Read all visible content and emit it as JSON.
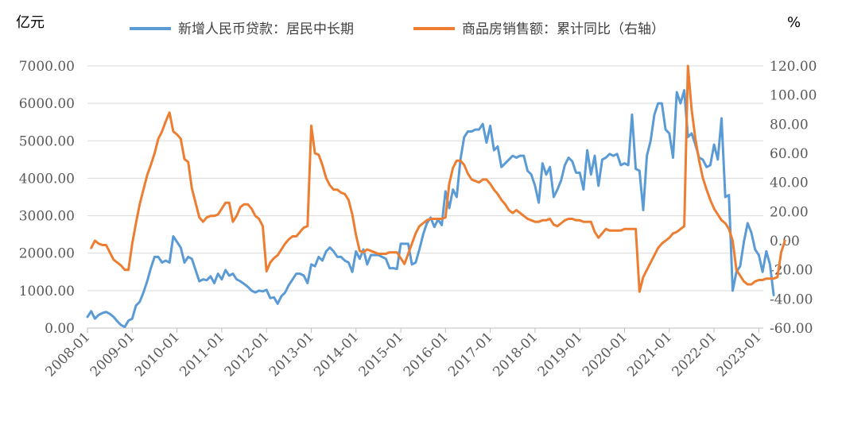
{
  "chart_data": {
    "type": "line",
    "left_axis_unit": "亿元",
    "right_axis_unit": "%",
    "left_ylim": [
      0,
      7000
    ],
    "right_ylim": [
      -60,
      120
    ],
    "left_ticks": [
      "0.00",
      "1000.00",
      "2000.00",
      "3000.00",
      "4000.00",
      "5000.00",
      "6000.00",
      "7000.00"
    ],
    "right_ticks": [
      "-60.00",
      "-40.00",
      "-20.00",
      "0.00",
      "20.00",
      "40.00",
      "60.00",
      "80.00",
      "100.00",
      "120.00"
    ],
    "x_ticks": [
      "2008-01",
      "2009-01",
      "2010-01",
      "2011-01",
      "2012-01",
      "2013-01",
      "2014-01",
      "2015-01",
      "2016-01",
      "2017-01",
      "2018-01",
      "2019-01",
      "2020-01",
      "2021-01",
      "2022-01",
      "2023-01"
    ],
    "gridlines": true,
    "legend_position": "top",
    "series": [
      {
        "name": "新增人民币贷款：居民中长期",
        "axis": "left",
        "color": "#5b9bd5",
        "start": "2008-01",
        "values": [
          300,
          450,
          250,
          350,
          400,
          430,
          380,
          300,
          180,
          80,
          30,
          200,
          250,
          600,
          700,
          950,
          1250,
          1600,
          1900,
          1900,
          1750,
          1800,
          1750,
          2450,
          2300,
          2150,
          1750,
          1900,
          1850,
          1550,
          1250,
          1300,
          1280,
          1380,
          1200,
          1450,
          1300,
          1550,
          1400,
          1450,
          1300,
          1250,
          1180,
          1100,
          1000,
          950,
          1000,
          980,
          1020,
          800,
          820,
          650,
          850,
          950,
          1150,
          1300,
          1450,
          1450,
          1400,
          1200,
          1700,
          1650,
          1900,
          1800,
          2050,
          2150,
          2050,
          1900,
          1900,
          1800,
          1750,
          1500,
          2050,
          1850,
          2100,
          1700,
          1950,
          1950,
          1950,
          1900,
          1850,
          1600,
          1600,
          1580,
          2250,
          2250,
          2250,
          1700,
          1750,
          2100,
          2500,
          2800,
          2950,
          2700,
          2900,
          2750,
          3650,
          3200,
          3700,
          3500,
          4500,
          5100,
          5250,
          5250,
          5300,
          5300,
          5450,
          4950,
          5400,
          4750,
          4850,
          4300,
          4400,
          4500,
          4600,
          4550,
          4600,
          4600,
          4200,
          4100,
          3800,
          3350,
          4400,
          4100,
          4300,
          3500,
          3700,
          3950,
          4350,
          4550,
          4450,
          4150,
          4150,
          3700,
          4750,
          4100,
          4600,
          3800,
          4500,
          4550,
          4650,
          4600,
          4650,
          4350,
          4400,
          4350,
          5700,
          4250,
          4200,
          3150,
          4600,
          5000,
          5700,
          6000,
          6000,
          5300,
          5200,
          4550,
          6300,
          6000,
          6350,
          5100,
          5200,
          4900,
          4550,
          4500,
          4300,
          4350,
          4900,
          4500,
          5600,
          3500,
          3550,
          1000,
          1500,
          1650,
          2300,
          2800,
          2550,
          2100,
          1950,
          1500,
          2050,
          1700,
          880
        ]
      },
      {
        "name": "商品房销售额：累计同比（右轴）",
        "axis": "right",
        "color": "#ed7d31",
        "start": "2008-02",
        "values": [
          -5,
          0,
          -2,
          -3,
          -3,
          -8,
          -13,
          -15,
          -17,
          -20,
          -20,
          -2,
          12,
          25,
          35,
          45,
          52,
          60,
          70,
          75,
          82,
          88,
          75,
          73,
          70,
          56,
          54,
          36,
          26,
          16,
          13,
          16,
          17,
          17,
          18,
          22,
          26,
          26,
          13,
          17,
          23,
          25,
          25,
          22,
          17,
          15,
          10,
          -21,
          -15,
          -12,
          -10,
          -6,
          -2,
          1,
          3,
          3,
          6,
          9,
          10,
          79,
          60,
          59,
          52,
          43,
          38,
          35,
          35,
          33,
          32,
          28,
          18,
          4,
          -7,
          -8,
          -6,
          -7,
          -8,
          -9,
          -9,
          -9,
          -8,
          -8,
          -8,
          -12,
          -16,
          -9,
          -2,
          5,
          10,
          12,
          14,
          15,
          15,
          15,
          15,
          16,
          39,
          50,
          55,
          55,
          52,
          46,
          42,
          41,
          40,
          42,
          42,
          39,
          35,
          32,
          28,
          25,
          21,
          19,
          21,
          19,
          17,
          15,
          14,
          13,
          13,
          14,
          14,
          15,
          11,
          10,
          12,
          14,
          15,
          15,
          14,
          14,
          13,
          13,
          13,
          6,
          2,
          5,
          8,
          7,
          7,
          7,
          7,
          8,
          8,
          8,
          8,
          -35,
          -25,
          -20,
          -15,
          -10,
          -5,
          -2,
          0,
          2,
          5,
          6,
          8,
          10,
          120,
          90,
          70,
          55,
          43,
          35,
          28,
          22,
          18,
          14,
          12,
          8,
          0,
          -20,
          -24,
          -28,
          -30,
          -30,
          -28,
          -27,
          -27,
          -26,
          -26,
          -26,
          -25,
          -8,
          0
        ]
      }
    ]
  }
}
